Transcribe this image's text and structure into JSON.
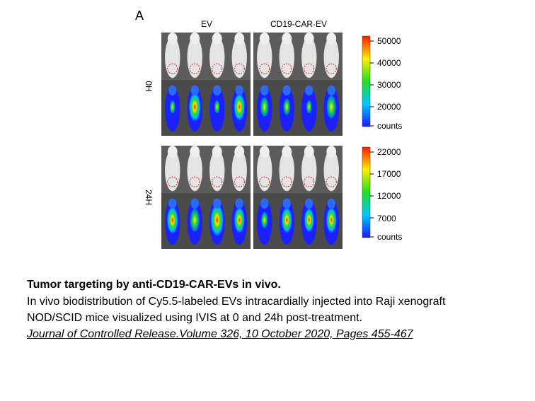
{
  "figure": {
    "panel_letter": "A",
    "columns": [
      "EV",
      "CD19-CAR-EV"
    ],
    "rows": [
      {
        "label": "0H",
        "scale_ticks": [
          "50000",
          "40000",
          "30000",
          "20000",
          "counts"
        ]
      },
      {
        "label": "24H",
        "scale_ticks": [
          "22000",
          "17000",
          "12000",
          "7000",
          "counts"
        ]
      }
    ]
  },
  "caption": {
    "title": "Tumor targeting by anti-CD19-CAR-EVs in vivo.",
    "line1": "In vivo biodistribution of Cy5.5-labeled EVs intracardially injected into Raji xenograft",
    "line2": "NOD/SCID mice visualized using IVIS at 0 and 24h post-treatment.",
    "citation": "Journal of Controlled Release.Volume 326, 10 October 2020, Pages 455-467"
  }
}
